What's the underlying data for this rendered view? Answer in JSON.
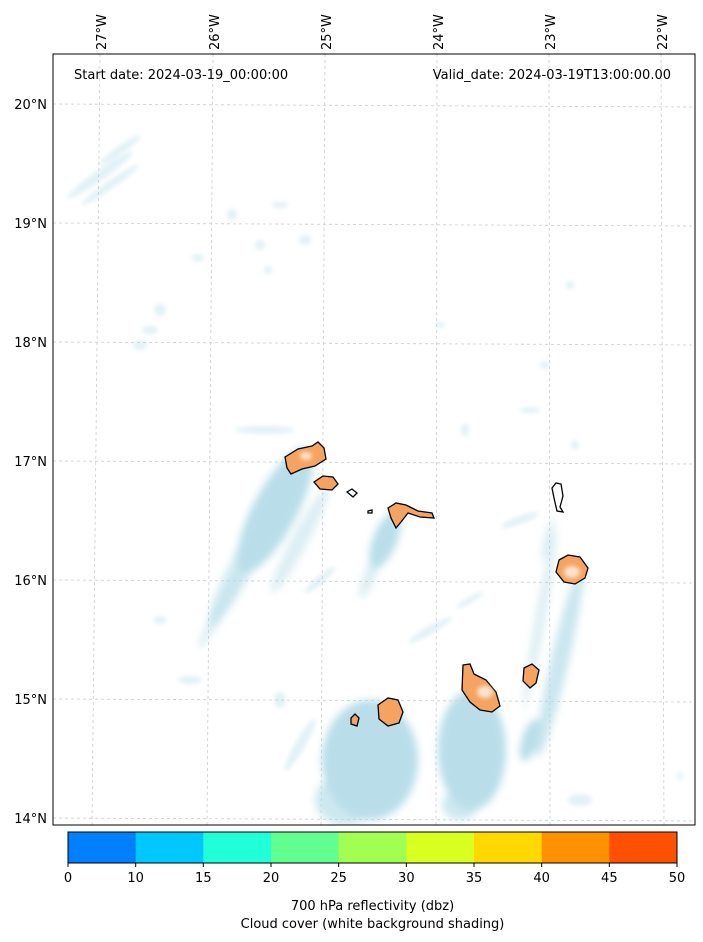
{
  "header": {
    "start_date": "Start date: 2024-03-19_00:00:00",
    "valid_date": "Valid_date: 2024-03-19T13:00:00.00"
  },
  "map": {
    "lon_labels": [
      "27°W",
      "26°W",
      "25°W",
      "24°W",
      "23°W",
      "22°W"
    ],
    "lat_labels": [
      "20°N",
      "19°N",
      "18°N",
      "17°N",
      "16°N",
      "15°N",
      "14°N"
    ],
    "cloud_color": "#add8e6",
    "island_fill": "#f4a460",
    "coastline_color": "#000000"
  },
  "colorbar": {
    "ticks": [
      "0",
      "10",
      "15",
      "20",
      "25",
      "30",
      "35",
      "40",
      "45",
      "50"
    ],
    "colors": [
      "#0080ff",
      "#00c8ff",
      "#20ffd8",
      "#60ff90",
      "#a0ff50",
      "#d8ff20",
      "#ffd800",
      "#ff9000",
      "#ff5000"
    ],
    "label_line1": "700 hPa reflectivity (dbz)",
    "label_line2": "Cloud cover (white background shading)"
  }
}
